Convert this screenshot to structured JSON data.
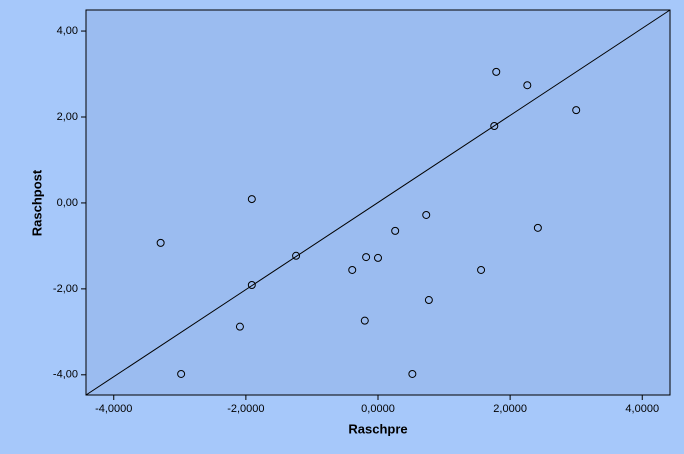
{
  "chart_data": {
    "type": "scatter",
    "x_label": "Raschpre",
    "y_label": "Raschpost",
    "x": [
      -3.29,
      -2.98,
      -2.09,
      -1.91,
      -1.91,
      -1.24,
      -0.39,
      -0.18,
      -0.2,
      0.0,
      0.26,
      0.52,
      0.73,
      0.77,
      1.56,
      1.76,
      1.79,
      2.26,
      2.42,
      3.0
    ],
    "y": [
      -0.93,
      -3.98,
      -2.88,
      0.09,
      -1.91,
      -1.23,
      -1.56,
      -1.26,
      -2.74,
      -1.28,
      -0.65,
      -3.98,
      -0.28,
      -2.26,
      -1.56,
      1.79,
      3.05,
      2.74,
      -0.58,
      2.16
    ],
    "xlim": [
      -4.42,
      4.42
    ],
    "ylim": [
      -4.47,
      4.49
    ],
    "xticks": [
      {
        "value": -4,
        "label": "-4,0000"
      },
      {
        "value": -2,
        "label": "-2,0000"
      },
      {
        "value": 0,
        "label": "0,0000"
      },
      {
        "value": 2,
        "label": "2,0000"
      },
      {
        "value": 4,
        "label": "4,0000"
      }
    ],
    "yticks": [
      {
        "value": -4,
        "label": "-4,00"
      },
      {
        "value": -2,
        "label": "-2,00"
      },
      {
        "value": 0,
        "label": "0,00"
      },
      {
        "value": 2,
        "label": "2,00"
      },
      {
        "value": 4,
        "label": "4,00"
      }
    ],
    "plot_color": "#9bbcf0",
    "marker_color": "#000000"
  }
}
